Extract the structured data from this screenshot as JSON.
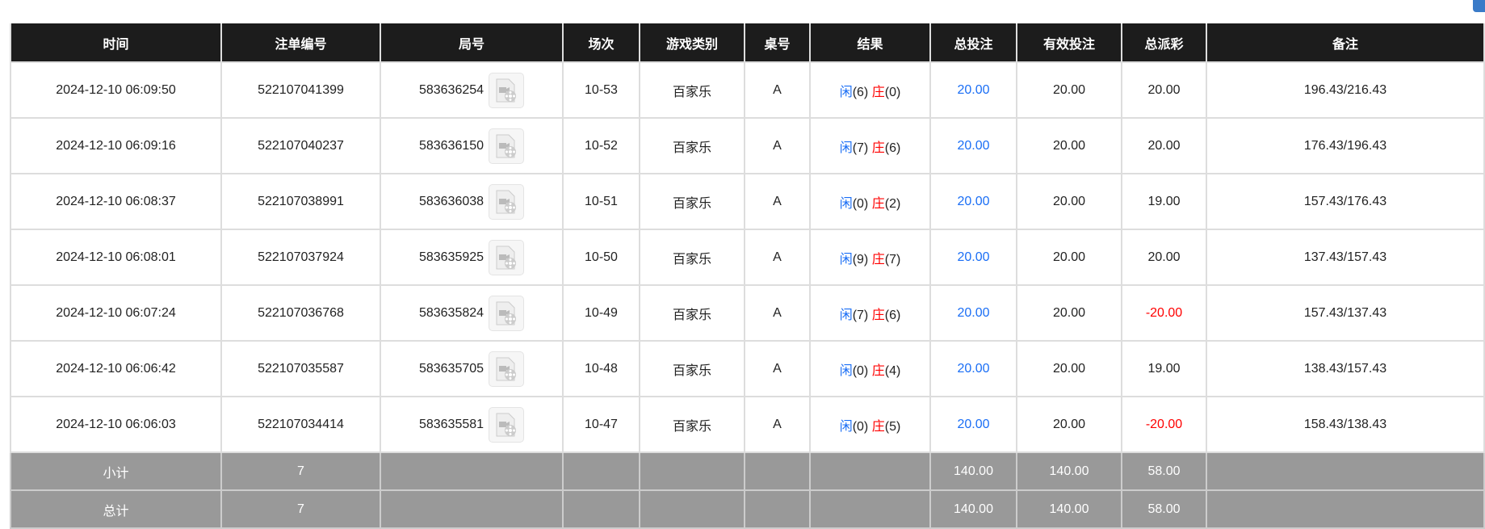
{
  "headers": [
    "时间",
    "注单编号",
    "局号",
    "场次",
    "游戏类别",
    "桌号",
    "结果",
    "总投注",
    "有效投注",
    "总派彩",
    "备注"
  ],
  "rows": [
    {
      "time": "2024-12-10 06:09:50",
      "bet_id": "522107041399",
      "round": "583636254",
      "session": "10-53",
      "game": "百家乐",
      "table": "A",
      "player_label": "闲",
      "player": "(6)",
      "banker_label": "庄",
      "banker": "(0)",
      "total_bet": "20.00",
      "valid_bet": "20.00",
      "payout": "20.00",
      "payout_negative": false,
      "note": "196.43/216.43"
    },
    {
      "time": "2024-12-10 06:09:16",
      "bet_id": "522107040237",
      "round": "583636150",
      "session": "10-52",
      "game": "百家乐",
      "table": "A",
      "player_label": "闲",
      "player": "(7)",
      "banker_label": "庄",
      "banker": "(6)",
      "total_bet": "20.00",
      "valid_bet": "20.00",
      "payout": "20.00",
      "payout_negative": false,
      "note": "176.43/196.43"
    },
    {
      "time": "2024-12-10 06:08:37",
      "bet_id": "522107038991",
      "round": "583636038",
      "session": "10-51",
      "game": "百家乐",
      "table": "A",
      "player_label": "闲",
      "player": "(0)",
      "banker_label": "庄",
      "banker": "(2)",
      "total_bet": "20.00",
      "valid_bet": "20.00",
      "payout": "19.00",
      "payout_negative": false,
      "note": "157.43/176.43"
    },
    {
      "time": "2024-12-10 06:08:01",
      "bet_id": "522107037924",
      "round": "583635925",
      "session": "10-50",
      "game": "百家乐",
      "table": "A",
      "player_label": "闲",
      "player": "(9)",
      "banker_label": "庄",
      "banker": "(7)",
      "total_bet": "20.00",
      "valid_bet": "20.00",
      "payout": "20.00",
      "payout_negative": false,
      "note": "137.43/157.43"
    },
    {
      "time": "2024-12-10 06:07:24",
      "bet_id": "522107036768",
      "round": "583635824",
      "session": "10-49",
      "game": "百家乐",
      "table": "A",
      "player_label": "闲",
      "player": "(7)",
      "banker_label": "庄",
      "banker": "(6)",
      "total_bet": "20.00",
      "valid_bet": "20.00",
      "payout": "-20.00",
      "payout_negative": true,
      "note": "157.43/137.43"
    },
    {
      "time": "2024-12-10 06:06:42",
      "bet_id": "522107035587",
      "round": "583635705",
      "session": "10-48",
      "game": "百家乐",
      "table": "A",
      "player_label": "闲",
      "player": "(0)",
      "banker_label": "庄",
      "banker": "(4)",
      "total_bet": "20.00",
      "valid_bet": "20.00",
      "payout": "19.00",
      "payout_negative": false,
      "note": "138.43/157.43"
    },
    {
      "time": "2024-12-10 06:06:03",
      "bet_id": "522107034414",
      "round": "583635581",
      "session": "10-47",
      "game": "百家乐",
      "table": "A",
      "player_label": "闲",
      "player": "(0)",
      "banker_label": "庄",
      "banker": "(5)",
      "total_bet": "20.00",
      "valid_bet": "20.00",
      "payout": "-20.00",
      "payout_negative": true,
      "note": "158.43/138.43"
    }
  ],
  "summary": [
    {
      "label": "小计",
      "count": "7",
      "total_bet": "140.00",
      "valid_bet": "140.00",
      "payout": "58.00"
    },
    {
      "label": "总计",
      "count": "7",
      "total_bet": "140.00",
      "valid_bet": "140.00",
      "payout": "58.00"
    }
  ],
  "colors": {
    "header_bg": "#1c1c1c",
    "player": "#1a6ef5",
    "banker": "#ff0000",
    "negative": "#ff0000",
    "summary_bg": "#999999"
  },
  "icons": {
    "replay": "video-file-icon"
  }
}
